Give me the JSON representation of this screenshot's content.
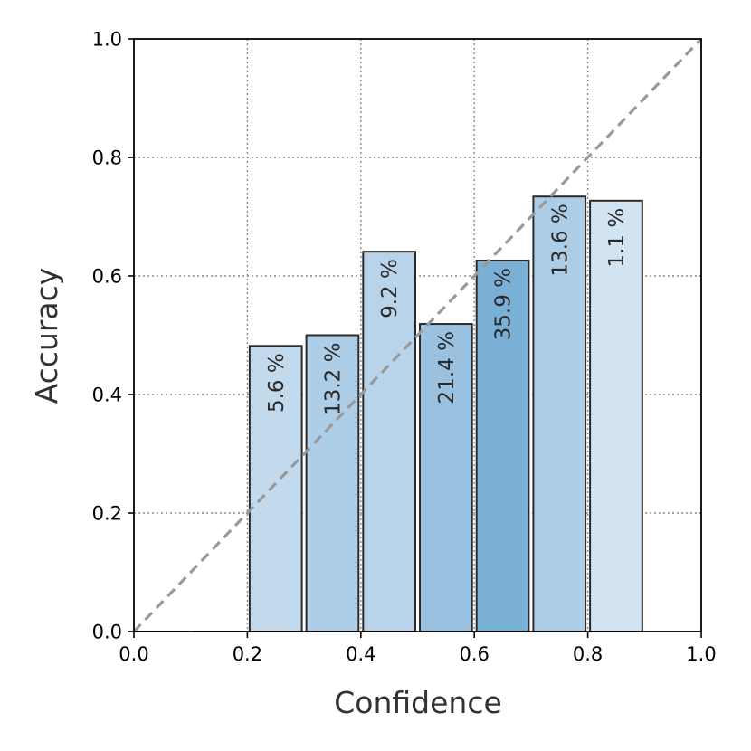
{
  "chart_data": {
    "type": "bar",
    "title": "",
    "xlabel": "Confidence",
    "ylabel": "Accuracy",
    "xlim": [
      0.0,
      1.0
    ],
    "ylim": [
      0.0,
      1.0
    ],
    "grid": true,
    "x_ticks": [
      "0.0",
      "0.2",
      "0.4",
      "0.6",
      "0.8",
      "1.0"
    ],
    "y_ticks": [
      "0.0",
      "0.2",
      "0.4",
      "0.6",
      "0.8",
      "1.0"
    ],
    "bin_width": 0.1,
    "bins": [
      {
        "start": 0.0,
        "accuracy": 0.0,
        "label": ""
      },
      {
        "start": 0.1,
        "accuracy": 0.0,
        "label": ""
      },
      {
        "start": 0.2,
        "accuracy": 0.482,
        "label": "5.6 %"
      },
      {
        "start": 0.3,
        "accuracy": 0.5,
        "label": "13.2 %"
      },
      {
        "start": 0.4,
        "accuracy": 0.641,
        "label": "9.2 %"
      },
      {
        "start": 0.5,
        "accuracy": 0.519,
        "label": "21.4 %"
      },
      {
        "start": 0.6,
        "accuracy": 0.626,
        "label": "35.9 %"
      },
      {
        "start": 0.7,
        "accuracy": 0.734,
        "label": "13.6 %"
      },
      {
        "start": 0.8,
        "accuracy": 0.727,
        "label": "1.1 %"
      }
    ],
    "diagonal_line": {
      "from": [
        0.0,
        0.0
      ],
      "to": [
        1.0,
        1.0
      ],
      "style": "dashed"
    },
    "colors": {
      "bar_min": "#d8e6f4",
      "bar_max": "#7aafd6",
      "bar_edge": "#2b2b2b",
      "diagonal": "#999999",
      "grid": "#8a8a8a"
    }
  }
}
